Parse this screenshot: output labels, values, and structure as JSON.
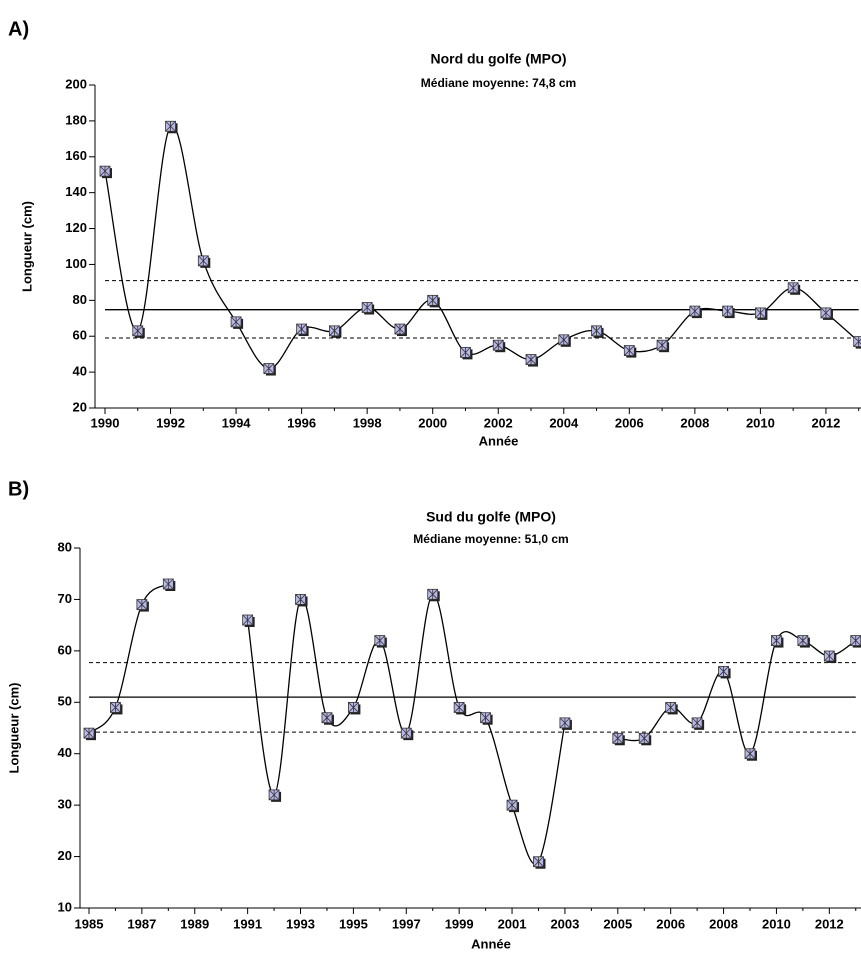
{
  "chart_data": [
    {
      "type": "line",
      "panel_label": "A)",
      "title": "Nord du golfe (MPO)",
      "subtitle": "Médiane moyenne: 74,8 cm",
      "xlabel": "Année",
      "ylabel": "Longueur (cm)",
      "categories": [
        "1990",
        null,
        "1992",
        null,
        "1994",
        null,
        "1996",
        null,
        "1998",
        null,
        "2000",
        null,
        "2002",
        null,
        "2004",
        null,
        "2006",
        null,
        "2008",
        null,
        "2010",
        null,
        "2012",
        null
      ],
      "values": [
        152,
        63,
        177,
        102,
        68,
        42,
        64,
        63,
        76,
        64,
        80,
        51,
        55,
        47,
        58,
        63,
        52,
        55,
        74,
        74,
        73,
        87,
        73,
        57
      ],
      "color": "#000000",
      "marker_color": "#b8b8e8",
      "ylim": [
        20,
        200
      ],
      "yticks": [
        20,
        40,
        60,
        80,
        100,
        120,
        140,
        160,
        180,
        200
      ],
      "mean": 74.8,
      "band": [
        59,
        91
      ]
    },
    {
      "type": "line",
      "panel_label": "B)",
      "title": "Sud du golfe (MPO)",
      "subtitle": "Médiane moyenne: 51,0 cm",
      "xlabel": "Année",
      "ylabel": "Longueur (cm)",
      "categories": [
        "1985",
        null,
        "1987",
        null,
        "1989",
        null,
        "1991",
        null,
        "1993",
        null,
        "1995",
        null,
        "1997",
        null,
        "1999",
        null,
        "2001",
        null,
        "2003",
        null,
        "2005",
        null,
        "2006",
        null,
        "2008",
        null,
        "2010",
        null,
        "2012",
        null
      ],
      "values": [
        44,
        49,
        69,
        73,
        null,
        null,
        66,
        32,
        70,
        47,
        49,
        62,
        44,
        71,
        49,
        47,
        30,
        19,
        46,
        null,
        43,
        43,
        49,
        46,
        56,
        40,
        62,
        62,
        59,
        62
      ],
      "color": "#000000",
      "marker_color": "#b8b8e8",
      "ylim": [
        10,
        80
      ],
      "yticks": [
        10,
        20,
        30,
        40,
        50,
        60,
        70,
        80
      ],
      "mean": 51.0,
      "band": [
        44.2,
        57.7
      ]
    }
  ]
}
